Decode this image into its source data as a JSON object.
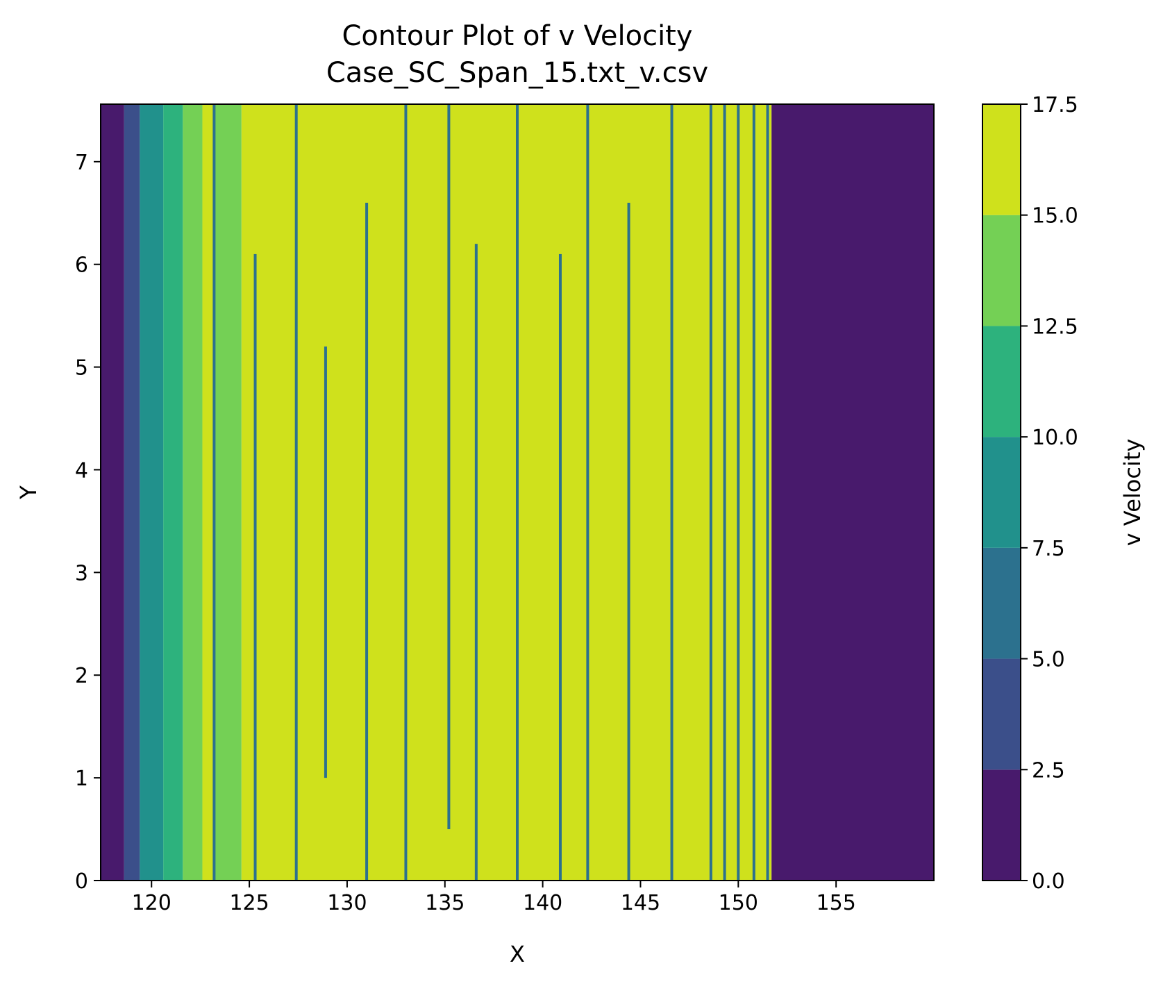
{
  "chart_data": {
    "type": "heatmap",
    "subtype": "filled-contour",
    "title": "Contour Plot of v Velocity",
    "subtitle": "Case_SC_Span_15.txt_v.csv",
    "xlabel": "X",
    "ylabel": "Y",
    "colorbar_label": "v Velocity",
    "xlim": [
      117.4,
      160.0
    ],
    "ylim": [
      0,
      7.56
    ],
    "x_ticks": [
      120,
      125,
      130,
      135,
      140,
      145,
      150,
      155
    ],
    "x_tick_labels": [
      "120",
      "125",
      "130",
      "135",
      "140",
      "145",
      "150",
      "155"
    ],
    "y_ticks": [
      0,
      1,
      2,
      3,
      4,
      5,
      6,
      7
    ],
    "y_tick_labels": [
      "0",
      "1",
      "2",
      "3",
      "4",
      "5",
      "6",
      "7"
    ],
    "levels": [
      0.0,
      2.5,
      5.0,
      7.5,
      10.0,
      12.5,
      15.0,
      17.5
    ],
    "level_labels": [
      "0.0",
      "2.5",
      "5.0",
      "7.5",
      "10.0",
      "12.5",
      "15.0",
      "17.5"
    ],
    "level_colors": [
      "#481a6c",
      "#3b4f8a",
      "#2c718e",
      "#21918c",
      "#2db27d",
      "#74d055",
      "#cfe11c"
    ],
    "colormap": "viridis",
    "grid": false,
    "bands": [
      {
        "x": [
          117.4,
          118.6
        ],
        "level_index": 0
      },
      {
        "x": [
          118.6,
          119.4
        ],
        "level_index": 1
      },
      {
        "x": [
          119.4,
          120.6
        ],
        "level_index": 3
      },
      {
        "x": [
          120.6,
          121.6
        ],
        "level_index": 4
      },
      {
        "x": [
          121.6,
          122.6
        ],
        "level_index": 5
      },
      {
        "x": [
          122.6,
          123.2
        ],
        "level_index": 6
      },
      {
        "x": [
          123.2,
          124.6
        ],
        "level_index": 5
      },
      {
        "x": [
          124.6,
          148.5
        ],
        "level_index": 6
      },
      {
        "x": [
          148.5,
          151.7
        ],
        "level_index": 6
      },
      {
        "x": [
          151.7,
          160.0
        ],
        "level_index": 0
      }
    ],
    "streaks": [
      {
        "x": 123.2,
        "y": [
          0.0,
          7.56
        ]
      },
      {
        "x": 125.3,
        "y": [
          0.0,
          6.1
        ]
      },
      {
        "x": 127.4,
        "y": [
          0.0,
          7.56
        ]
      },
      {
        "x": 128.9,
        "y": [
          1.0,
          5.2
        ]
      },
      {
        "x": 131.0,
        "y": [
          0.0,
          6.6
        ]
      },
      {
        "x": 133.0,
        "y": [
          0.0,
          7.56
        ]
      },
      {
        "x": 135.2,
        "y": [
          0.5,
          7.56
        ]
      },
      {
        "x": 136.6,
        "y": [
          0.0,
          6.2
        ]
      },
      {
        "x": 138.7,
        "y": [
          0.0,
          7.56
        ]
      },
      {
        "x": 140.9,
        "y": [
          0.0,
          6.1
        ]
      },
      {
        "x": 142.3,
        "y": [
          0.0,
          7.56
        ]
      },
      {
        "x": 144.4,
        "y": [
          0.0,
          6.6
        ]
      },
      {
        "x": 146.6,
        "y": [
          0.0,
          7.56
        ]
      },
      {
        "x": 148.6,
        "y": [
          0.0,
          7.56
        ]
      },
      {
        "x": 149.3,
        "y": [
          0.0,
          7.56
        ]
      },
      {
        "x": 150.0,
        "y": [
          0.0,
          7.56
        ]
      },
      {
        "x": 150.8,
        "y": [
          0.0,
          7.56
        ]
      },
      {
        "x": 151.5,
        "y": [
          0.0,
          7.56
        ]
      }
    ]
  }
}
